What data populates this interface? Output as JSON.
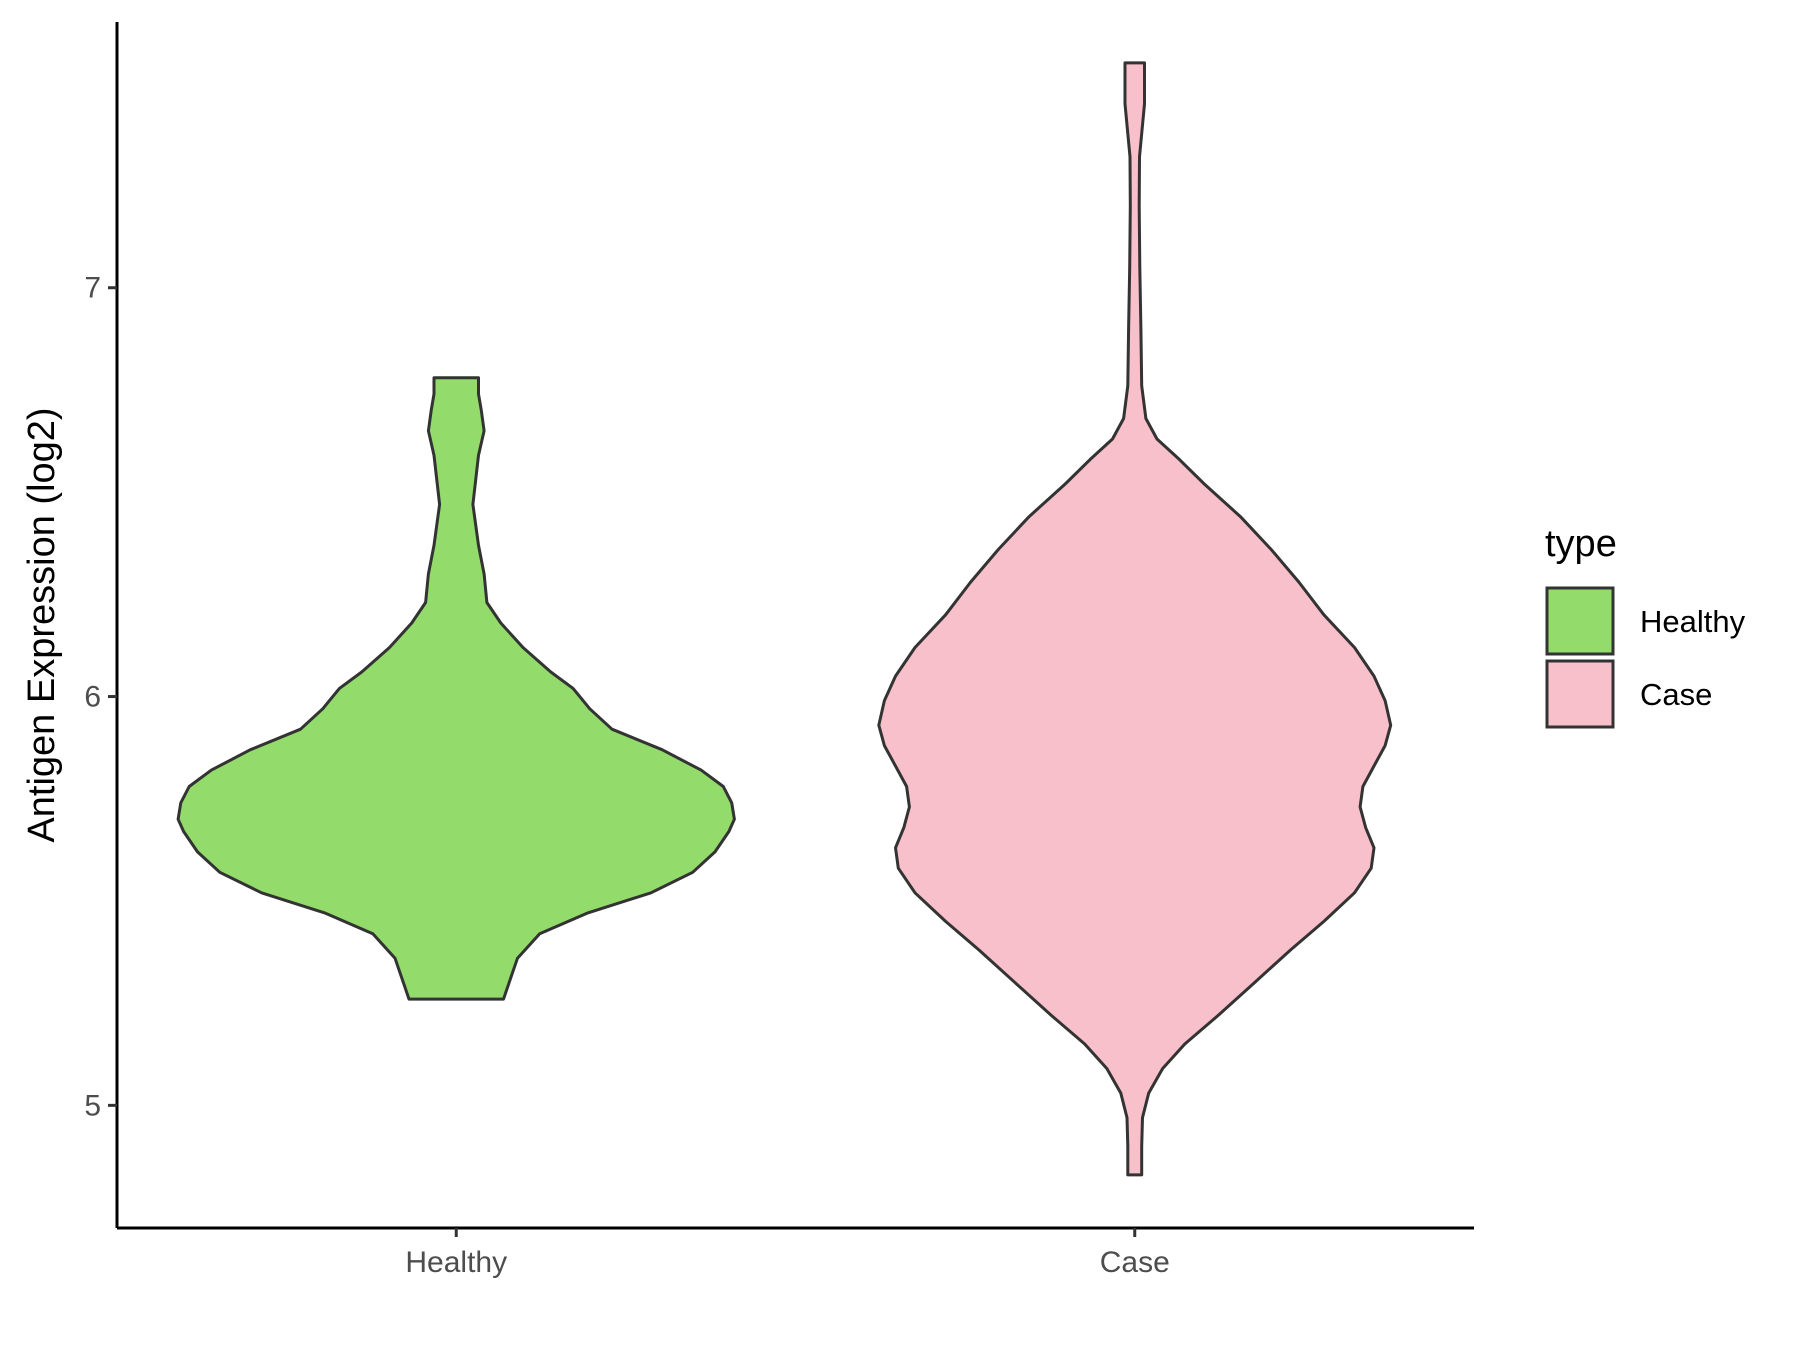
{
  "chart_data": {
    "type": "violin",
    "title": "",
    "xlabel": "",
    "ylabel": "Antigen Expression (log2)",
    "ylim": [
      4.7,
      7.65
    ],
    "yticks": [
      5,
      6,
      7
    ],
    "grid": false,
    "legend": {
      "title": "type",
      "position": "right",
      "entries": [
        {
          "label": "Healthy",
          "color": "#93DB6B"
        },
        {
          "label": "Case",
          "color": "#F8C0CB"
        }
      ]
    },
    "categories": [
      "Healthy",
      "Case"
    ],
    "series": [
      {
        "name": "Healthy",
        "color": "#93DB6B",
        "min": 5.26,
        "max": 6.78,
        "density": [
          [
            5.26,
            0.17
          ],
          [
            5.3,
            0.19
          ],
          [
            5.36,
            0.22
          ],
          [
            5.42,
            0.3
          ],
          [
            5.47,
            0.47
          ],
          [
            5.52,
            0.7
          ],
          [
            5.57,
            0.85
          ],
          [
            5.62,
            0.93
          ],
          [
            5.67,
            0.98
          ],
          [
            5.7,
            1.0
          ],
          [
            5.74,
            0.99
          ],
          [
            5.78,
            0.96
          ],
          [
            5.82,
            0.88
          ],
          [
            5.87,
            0.74
          ],
          [
            5.92,
            0.56
          ],
          [
            5.97,
            0.48
          ],
          [
            6.02,
            0.42
          ],
          [
            6.06,
            0.34
          ],
          [
            6.12,
            0.24
          ],
          [
            6.18,
            0.16
          ],
          [
            6.23,
            0.11
          ],
          [
            6.3,
            0.1
          ],
          [
            6.37,
            0.08
          ],
          [
            6.42,
            0.07
          ],
          [
            6.47,
            0.06
          ],
          [
            6.53,
            0.07
          ],
          [
            6.59,
            0.08
          ],
          [
            6.65,
            0.1
          ],
          [
            6.7,
            0.09
          ],
          [
            6.74,
            0.08
          ],
          [
            6.78,
            0.08
          ]
        ]
      },
      {
        "name": "Case",
        "color": "#F8C0CB",
        "min": 4.83,
        "max": 7.55,
        "density": [
          [
            4.83,
            0.025
          ],
          [
            4.9,
            0.025
          ],
          [
            4.97,
            0.028
          ],
          [
            5.03,
            0.05
          ],
          [
            5.09,
            0.1
          ],
          [
            5.15,
            0.18
          ],
          [
            5.22,
            0.3
          ],
          [
            5.3,
            0.43
          ],
          [
            5.38,
            0.56
          ],
          [
            5.45,
            0.68
          ],
          [
            5.52,
            0.79
          ],
          [
            5.58,
            0.85
          ],
          [
            5.63,
            0.86
          ],
          [
            5.68,
            0.83
          ],
          [
            5.73,
            0.81
          ],
          [
            5.78,
            0.82
          ],
          [
            5.83,
            0.86
          ],
          [
            5.88,
            0.9
          ],
          [
            5.93,
            0.92
          ],
          [
            5.99,
            0.9
          ],
          [
            6.05,
            0.86
          ],
          [
            6.12,
            0.79
          ],
          [
            6.2,
            0.68
          ],
          [
            6.28,
            0.59
          ],
          [
            6.36,
            0.49
          ],
          [
            6.44,
            0.38
          ],
          [
            6.52,
            0.25
          ],
          [
            6.58,
            0.16
          ],
          [
            6.63,
            0.08
          ],
          [
            6.68,
            0.04
          ],
          [
            6.76,
            0.025
          ],
          [
            6.9,
            0.022
          ],
          [
            7.05,
            0.018
          ],
          [
            7.2,
            0.016
          ],
          [
            7.32,
            0.017
          ],
          [
            7.45,
            0.035
          ],
          [
            7.55,
            0.035
          ]
        ]
      }
    ]
  }
}
